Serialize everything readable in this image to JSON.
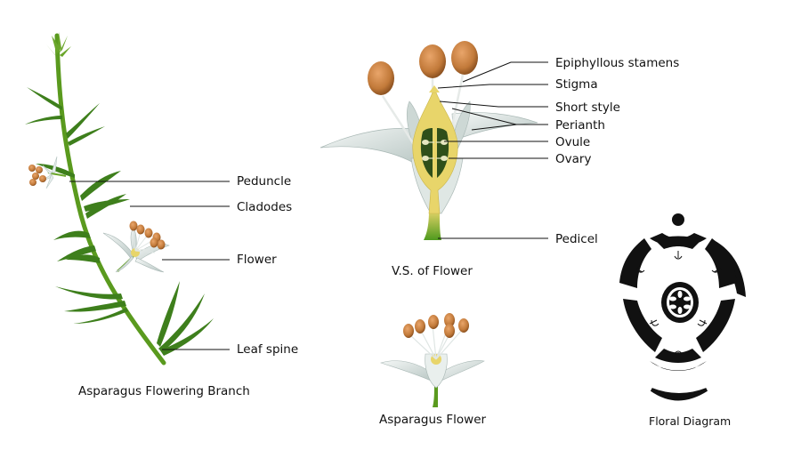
{
  "branch": {
    "caption": "Asparagus Flowering Branch",
    "labels": {
      "peduncle": "Peduncle",
      "cladodes": "Cladodes",
      "flower": "Flower",
      "leaf_spine": "Leaf spine"
    }
  },
  "vs": {
    "caption": "V.S. of Flower",
    "labels": {
      "stamens": "Epiphyllous stamens",
      "stigma": "Stigma",
      "style": "Short style",
      "perianth": "Perianth",
      "ovule": "Ovule",
      "ovary": "Ovary",
      "pedicel": "Pedicel"
    }
  },
  "flower": {
    "caption": "Asparagus Flower"
  },
  "floral": {
    "caption": "Floral Diagram"
  },
  "colors": {
    "stem": "#5a9a1e",
    "leaf": "#3e7f1c",
    "anther": "#c27a3a",
    "petal": "#d8e2e0",
    "ovary": "#2f4f1a",
    "wall": "#e8d56a"
  }
}
